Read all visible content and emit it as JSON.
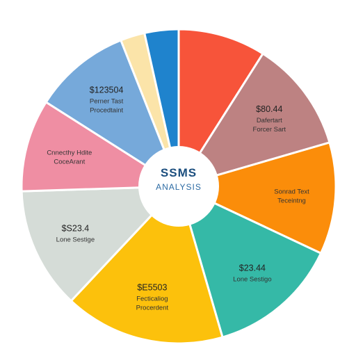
{
  "chart_data": {
    "type": "pie",
    "title": "SSMS",
    "subtitle": "ANALYSIS",
    "slices": [
      {
        "color": "#f7543a",
        "value": 9.0,
        "lines": []
      },
      {
        "color": "#bd8282",
        "value": 11.5,
        "lines": [
          "$80.44",
          "Dafertart",
          "Forcer Sart"
        ]
      },
      {
        "color": "#fb8d0a",
        "value": 11.5,
        "lines": [
          "Sonrad Text",
          "Teceintng"
        ]
      },
      {
        "color": "#35b9a7",
        "value": 13.5,
        "lines": [
          "$23.44",
          "Lone Sestigo"
        ]
      },
      {
        "color": "#fcc10c",
        "value": 16.5,
        "lines": [
          "$E5503",
          "Fecticaliog",
          "Procerdent"
        ]
      },
      {
        "color": "#d5dcd7",
        "value": 12.5,
        "lines": [
          "$S23.4",
          "Lone Sestige"
        ]
      },
      {
        "color": "#ef8ea3",
        "value": 9.5,
        "lines": [
          "Cnnecthy Hdite",
          "CoceArant"
        ]
      },
      {
        "color": "#76a9da",
        "value": 10.0,
        "lines": [
          "$123504",
          "Perner Tast",
          "Procedtaint"
        ]
      },
      {
        "color": "#fbe4a9",
        "value": 2.5,
        "lines": []
      },
      {
        "color": "#1f83cd",
        "value": 3.5,
        "lines": []
      }
    ]
  }
}
